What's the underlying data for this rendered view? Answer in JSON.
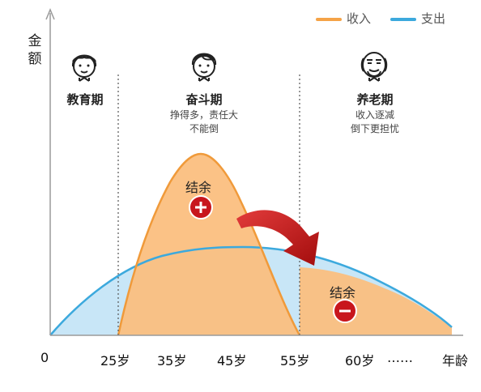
{
  "legend": {
    "income": {
      "label": "收入",
      "color": "#f5a347"
    },
    "expense": {
      "label": "支出",
      "color": "#3ca9dd"
    }
  },
  "y_axis_label": "金额",
  "stages": [
    {
      "title": "教育期",
      "desc": []
    },
    {
      "title": "奋斗期",
      "desc": [
        "挣得多，责任大",
        "不能倒"
      ]
    },
    {
      "title": "养老期",
      "desc": [
        "收入逐减",
        "倒下更担忧"
      ]
    }
  ],
  "x_ticks": [
    "0",
    "25岁",
    "35岁",
    "45岁",
    "55岁",
    "60岁",
    "……",
    "年龄"
  ],
  "surplus": {
    "label": "结余",
    "sign": "+"
  },
  "deficit": {
    "label": "结余",
    "sign": "-"
  },
  "colors": {
    "income_fill": "#fbbf80",
    "expense_fill": "#c8e6f7",
    "arrow": "#cc1f1f",
    "badge": "#c8161d"
  },
  "icons": [
    "child-face-icon",
    "adult-face-icon",
    "elder-face-icon"
  ]
}
